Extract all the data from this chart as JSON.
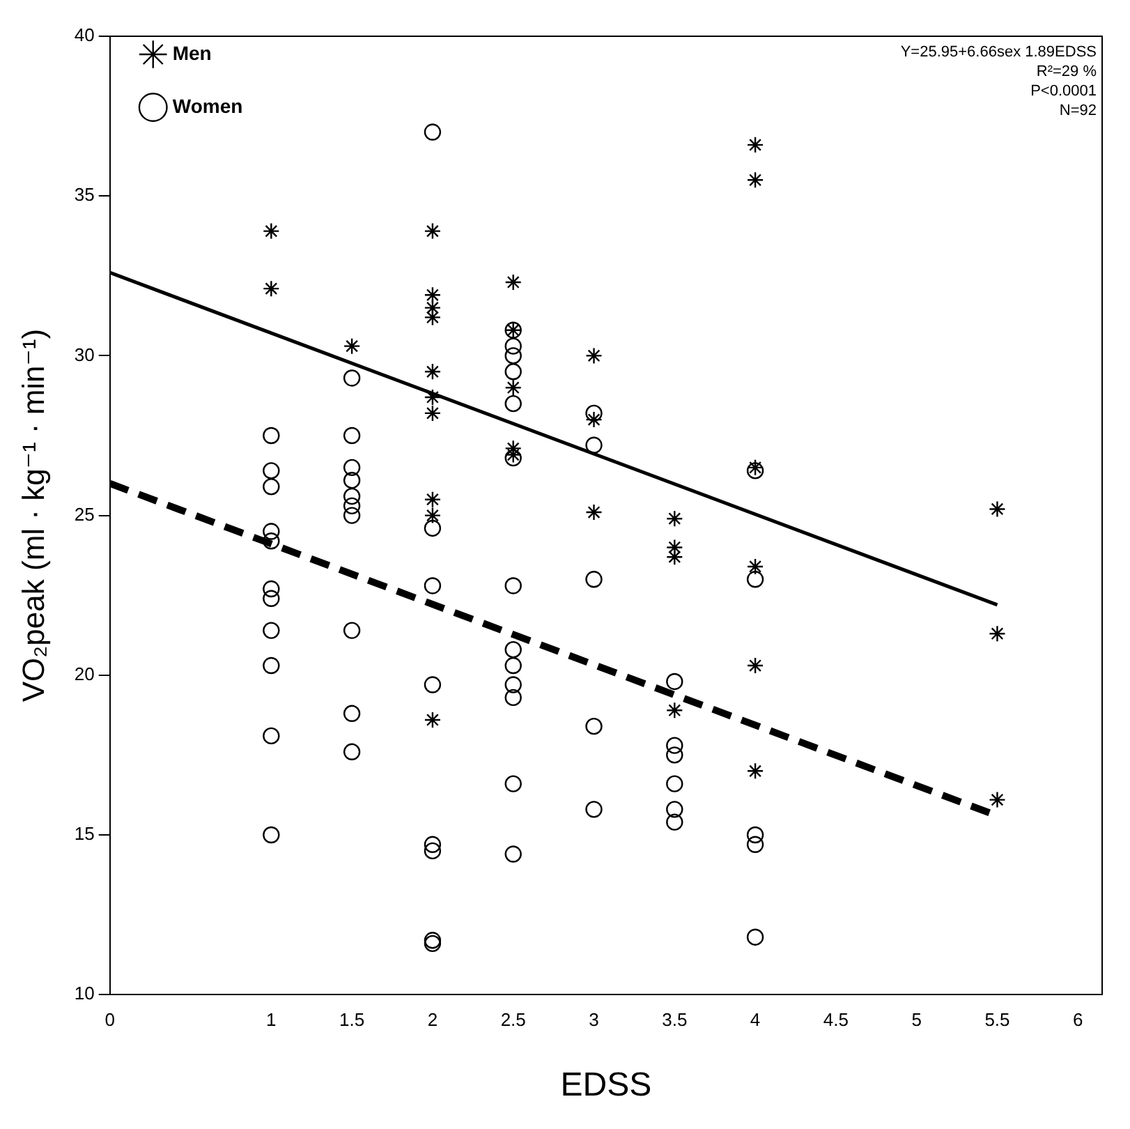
{
  "chart_data": {
    "type": "scatter",
    "xlabel": "EDSS",
    "ylabel": "VO₂peak (ml · kg⁻¹ · min⁻¹)",
    "xlim": [
      0,
      6.15
    ],
    "xticks": [
      0,
      1,
      1.5,
      2,
      2.5,
      3,
      3.5,
      4,
      4.5,
      5,
      5.5,
      6
    ],
    "ylim": [
      10,
      40
    ],
    "yticks": [
      10,
      15,
      20,
      25,
      30,
      35,
      40
    ],
    "grid": false,
    "legend": "top left",
    "annotations": [
      "Y=25.95+6.66sex 1.89EDSS",
      "R²=29 %",
      "P<0.0001",
      "N=92"
    ],
    "series": [
      {
        "name": "Men",
        "color": "#000000",
        "marker": "cross",
        "x": [
          1,
          1,
          1.5,
          2,
          2,
          2,
          2,
          2,
          2,
          2,
          2,
          2,
          2,
          2.5,
          2.5,
          2.5,
          2.5,
          2.5,
          3,
          3,
          3,
          3.5,
          3.5,
          3.5,
          3.5,
          4,
          4,
          4,
          4,
          4,
          4,
          5.5,
          5.5,
          5.5
        ],
        "values": [
          33.9,
          32.1,
          30.3,
          33.9,
          31.9,
          31.5,
          31.2,
          29.5,
          28.7,
          28.2,
          25.5,
          25,
          18.6,
          32.3,
          30.8,
          29,
          27.1,
          26.9,
          30,
          28,
          25.1,
          24.9,
          24,
          23.7,
          18.9,
          36.6,
          35.5,
          26.5,
          23.4,
          20.3,
          17,
          25.2,
          21.3,
          16.1
        ]
      },
      {
        "name": "Women",
        "color": "#000000",
        "marker": "circle",
        "x": [
          1,
          1,
          1,
          1,
          1,
          1,
          1,
          1,
          1,
          1,
          1,
          1.5,
          1.5,
          1.5,
          1.5,
          1.5,
          1.5,
          1.5,
          1.5,
          1.5,
          1.5,
          2,
          2,
          2,
          2,
          2,
          2,
          2,
          2,
          2.5,
          2.5,
          2.5,
          2.5,
          2.5,
          2.5,
          2.5,
          2.5,
          2.5,
          2.5,
          2.5,
          2.5,
          2.5,
          3,
          3,
          3,
          3,
          3,
          3.5,
          3.5,
          3.5,
          3.5,
          3.5,
          3.5,
          4,
          4,
          4,
          4,
          4
        ],
        "values": [
          27.5,
          26.4,
          25.9,
          24.5,
          24.2,
          22.7,
          22.4,
          21.4,
          20.3,
          18.1,
          15,
          29.3,
          27.5,
          26.5,
          26.1,
          25.6,
          25.3,
          25,
          21.4,
          18.8,
          17.6,
          37,
          24.6,
          22.8,
          19.7,
          14.7,
          14.5,
          11.7,
          11.6,
          30.8,
          30,
          29.5,
          28.5,
          26.8,
          22.8,
          20.8,
          20.3,
          19.7,
          19.3,
          16.6,
          14.4,
          30.3,
          28.2,
          27.2,
          23,
          18.4,
          15.8,
          19.8,
          17.8,
          17.5,
          16.6,
          15.8,
          15.4,
          26.4,
          23,
          15,
          14.7,
          11.8
        ]
      },
      {
        "type": "line",
        "color": "#000000",
        "marker": "none",
        "line_style": "solid",
        "x": [
          0,
          5.5
        ],
        "values": [
          32.6,
          22.2
        ]
      },
      {
        "type": "line",
        "color": "#000000",
        "marker": "none",
        "line_style": "dashed",
        "x": [
          0,
          5.5
        ],
        "values": [
          26,
          15.6
        ]
      }
    ]
  }
}
